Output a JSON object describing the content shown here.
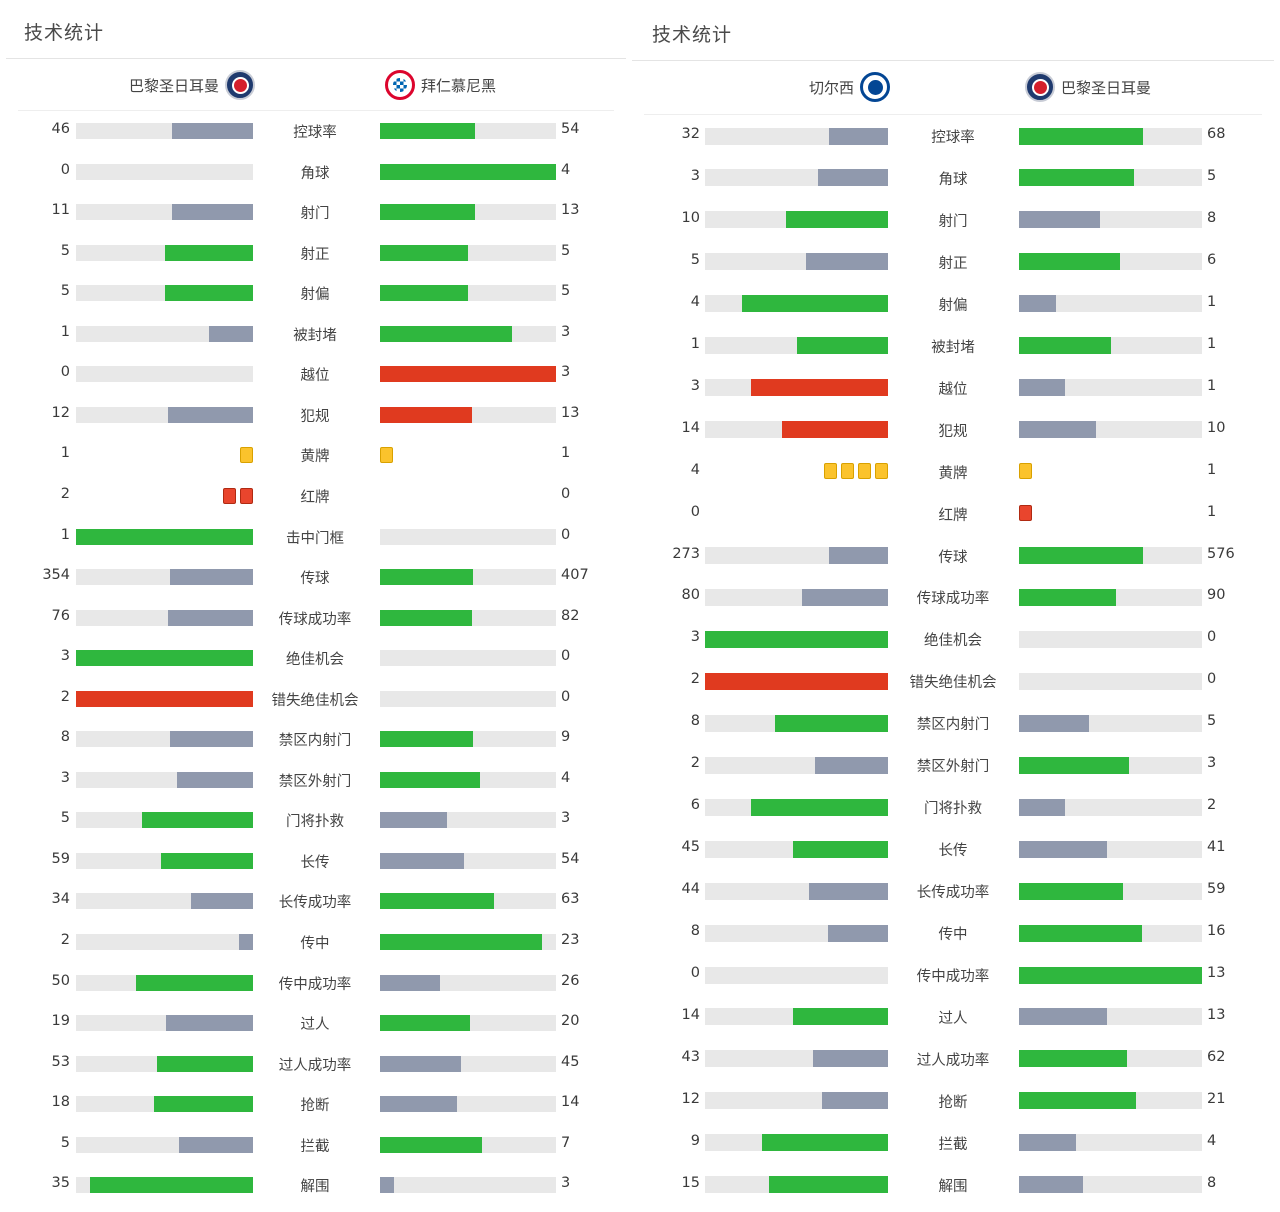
{
  "colors": {
    "win": "#2fb73e",
    "lose": "#9099ad",
    "bad": "#e03a1f",
    "track": "#e8e8e8"
  },
  "panels": [
    {
      "title": "技术统计",
      "home": {
        "name": "巴黎圣日耳曼",
        "badge": "psg-badge-icon"
      },
      "away": {
        "name": "拜仁慕尼黑",
        "badge": "bayern-badge-icon"
      },
      "stats": [
        {
          "label": "控球率",
          "left": "46",
          "right": "54",
          "lf": 0.46,
          "rf": 0.54,
          "lc": "lose",
          "rc": "win"
        },
        {
          "label": "角球",
          "left": "0",
          "right": "4",
          "lf": 0,
          "rf": 1,
          "lc": "lose",
          "rc": "win"
        },
        {
          "label": "射门",
          "left": "11",
          "right": "13",
          "lf": 0.46,
          "rf": 0.54,
          "lc": "lose",
          "rc": "win"
        },
        {
          "label": "射正",
          "left": "5",
          "right": "5",
          "lf": 0.5,
          "rf": 0.5,
          "lc": "win",
          "rc": "win"
        },
        {
          "label": "射偏",
          "left": "5",
          "right": "5",
          "lf": 0.5,
          "rf": 0.5,
          "lc": "win",
          "rc": "win"
        },
        {
          "label": "被封堵",
          "left": "1",
          "right": "3",
          "lf": 0.25,
          "rf": 0.75,
          "lc": "lose",
          "rc": "win"
        },
        {
          "label": "越位",
          "left": "0",
          "right": "3",
          "lf": 0,
          "rf": 1,
          "lc": "lose",
          "rc": "bad"
        },
        {
          "label": "犯规",
          "left": "12",
          "right": "13",
          "lf": 0.48,
          "rf": 0.52,
          "lc": "lose",
          "rc": "bad"
        },
        {
          "label": "黄牌",
          "left": "1",
          "right": "1",
          "cards": "yellow",
          "lcards": 1,
          "rcards": 1
        },
        {
          "label": "红牌",
          "left": "2",
          "right": "0",
          "cards": "red",
          "lcards": 2,
          "rcards": 0
        },
        {
          "label": "击中门框",
          "left": "1",
          "right": "0",
          "lf": 1,
          "rf": 0,
          "lc": "win",
          "rc": "lose"
        },
        {
          "label": "传球",
          "left": "354",
          "right": "407",
          "lf": 0.47,
          "rf": 0.53,
          "lc": "lose",
          "rc": "win"
        },
        {
          "label": "传球成功率",
          "left": "76",
          "right": "82",
          "lf": 0.48,
          "rf": 0.52,
          "lc": "lose",
          "rc": "win"
        },
        {
          "label": "绝佳机会",
          "left": "3",
          "right": "0",
          "lf": 1,
          "rf": 0,
          "lc": "win",
          "rc": "lose"
        },
        {
          "label": "错失绝佳机会",
          "left": "2",
          "right": "0",
          "lf": 1,
          "rf": 0,
          "lc": "bad",
          "rc": "lose"
        },
        {
          "label": "禁区内射门",
          "left": "8",
          "right": "9",
          "lf": 0.47,
          "rf": 0.53,
          "lc": "lose",
          "rc": "win"
        },
        {
          "label": "禁区外射门",
          "left": "3",
          "right": "4",
          "lf": 0.43,
          "rf": 0.57,
          "lc": "lose",
          "rc": "win"
        },
        {
          "label": "门将扑救",
          "left": "5",
          "right": "3",
          "lf": 0.63,
          "rf": 0.38,
          "lc": "win",
          "rc": "lose"
        },
        {
          "label": "长传",
          "left": "59",
          "right": "54",
          "lf": 0.52,
          "rf": 0.48,
          "lc": "win",
          "rc": "lose"
        },
        {
          "label": "长传成功率",
          "left": "34",
          "right": "63",
          "lf": 0.35,
          "rf": 0.65,
          "lc": "lose",
          "rc": "win"
        },
        {
          "label": "传中",
          "left": "2",
          "right": "23",
          "lf": 0.08,
          "rf": 0.92,
          "lc": "lose",
          "rc": "win"
        },
        {
          "label": "传中成功率",
          "left": "50",
          "right": "26",
          "lf": 0.66,
          "rf": 0.34,
          "lc": "win",
          "rc": "lose"
        },
        {
          "label": "过人",
          "left": "19",
          "right": "20",
          "lf": 0.49,
          "rf": 0.51,
          "lc": "lose",
          "rc": "win"
        },
        {
          "label": "过人成功率",
          "left": "53",
          "right": "45",
          "lf": 0.54,
          "rf": 0.46,
          "lc": "win",
          "rc": "lose"
        },
        {
          "label": "抢断",
          "left": "18",
          "right": "14",
          "lf": 0.56,
          "rf": 0.44,
          "lc": "win",
          "rc": "lose"
        },
        {
          "label": "拦截",
          "left": "5",
          "right": "7",
          "lf": 0.42,
          "rf": 0.58,
          "lc": "lose",
          "rc": "win"
        },
        {
          "label": "解围",
          "left": "35",
          "right": "3",
          "lf": 0.92,
          "rf": 0.08,
          "lc": "win",
          "rc": "lose"
        }
      ]
    },
    {
      "title": "技术统计",
      "home": {
        "name": "切尔西",
        "badge": "chelsea-badge-icon"
      },
      "away": {
        "name": "巴黎圣日耳曼",
        "badge": "psg-badge-icon"
      },
      "stats": [
        {
          "label": "控球率",
          "left": "32",
          "right": "68",
          "lf": 0.32,
          "rf": 0.68,
          "lc": "lose",
          "rc": "win"
        },
        {
          "label": "角球",
          "left": "3",
          "right": "5",
          "lf": 0.38,
          "rf": 0.63,
          "lc": "lose",
          "rc": "win"
        },
        {
          "label": "射门",
          "left": "10",
          "right": "8",
          "lf": 0.56,
          "rf": 0.44,
          "lc": "win",
          "rc": "lose"
        },
        {
          "label": "射正",
          "left": "5",
          "right": "6",
          "lf": 0.45,
          "rf": 0.55,
          "lc": "lose",
          "rc": "win"
        },
        {
          "label": "射偏",
          "left": "4",
          "right": "1",
          "lf": 0.8,
          "rf": 0.2,
          "lc": "win",
          "rc": "lose"
        },
        {
          "label": "被封堵",
          "left": "1",
          "right": "1",
          "lf": 0.5,
          "rf": 0.5,
          "lc": "win",
          "rc": "win"
        },
        {
          "label": "越位",
          "left": "3",
          "right": "1",
          "lf": 0.75,
          "rf": 0.25,
          "lc": "bad",
          "rc": "lose"
        },
        {
          "label": "犯规",
          "left": "14",
          "right": "10",
          "lf": 0.58,
          "rf": 0.42,
          "lc": "bad",
          "rc": "lose"
        },
        {
          "label": "黄牌",
          "left": "4",
          "right": "1",
          "cards": "yellow",
          "lcards": 4,
          "rcards": 1
        },
        {
          "label": "红牌",
          "left": "0",
          "right": "1",
          "cards": "red",
          "lcards": 0,
          "rcards": 1
        },
        {
          "label": "传球",
          "left": "273",
          "right": "576",
          "lf": 0.32,
          "rf": 0.68,
          "lc": "lose",
          "rc": "win"
        },
        {
          "label": "传球成功率",
          "left": "80",
          "right": "90",
          "lf": 0.47,
          "rf": 0.53,
          "lc": "lose",
          "rc": "win"
        },
        {
          "label": "绝佳机会",
          "left": "3",
          "right": "0",
          "lf": 1,
          "rf": 0,
          "lc": "win",
          "rc": "lose"
        },
        {
          "label": "错失绝佳机会",
          "left": "2",
          "right": "0",
          "lf": 1,
          "rf": 0,
          "lc": "bad",
          "rc": "lose"
        },
        {
          "label": "禁区内射门",
          "left": "8",
          "right": "5",
          "lf": 0.62,
          "rf": 0.38,
          "lc": "win",
          "rc": "lose"
        },
        {
          "label": "禁区外射门",
          "left": "2",
          "right": "3",
          "lf": 0.4,
          "rf": 0.6,
          "lc": "lose",
          "rc": "win"
        },
        {
          "label": "门将扑救",
          "left": "6",
          "right": "2",
          "lf": 0.75,
          "rf": 0.25,
          "lc": "win",
          "rc": "lose"
        },
        {
          "label": "长传",
          "left": "45",
          "right": "41",
          "lf": 0.52,
          "rf": 0.48,
          "lc": "win",
          "rc": "lose"
        },
        {
          "label": "长传成功率",
          "left": "44",
          "right": "59",
          "lf": 0.43,
          "rf": 0.57,
          "lc": "lose",
          "rc": "win"
        },
        {
          "label": "传中",
          "left": "8",
          "right": "16",
          "lf": 0.33,
          "rf": 0.67,
          "lc": "lose",
          "rc": "win"
        },
        {
          "label": "传中成功率",
          "left": "0",
          "right": "13",
          "lf": 0,
          "rf": 1,
          "lc": "lose",
          "rc": "win"
        },
        {
          "label": "过人",
          "left": "14",
          "right": "13",
          "lf": 0.52,
          "rf": 0.48,
          "lc": "win",
          "rc": "lose"
        },
        {
          "label": "过人成功率",
          "left": "43",
          "right": "62",
          "lf": 0.41,
          "rf": 0.59,
          "lc": "lose",
          "rc": "win"
        },
        {
          "label": "抢断",
          "left": "12",
          "right": "21",
          "lf": 0.36,
          "rf": 0.64,
          "lc": "lose",
          "rc": "win"
        },
        {
          "label": "拦截",
          "left": "9",
          "right": "4",
          "lf": 0.69,
          "rf": 0.31,
          "lc": "win",
          "rc": "lose"
        },
        {
          "label": "解围",
          "left": "15",
          "right": "8",
          "lf": 0.65,
          "rf": 0.35,
          "lc": "win",
          "rc": "lose"
        }
      ]
    }
  ]
}
